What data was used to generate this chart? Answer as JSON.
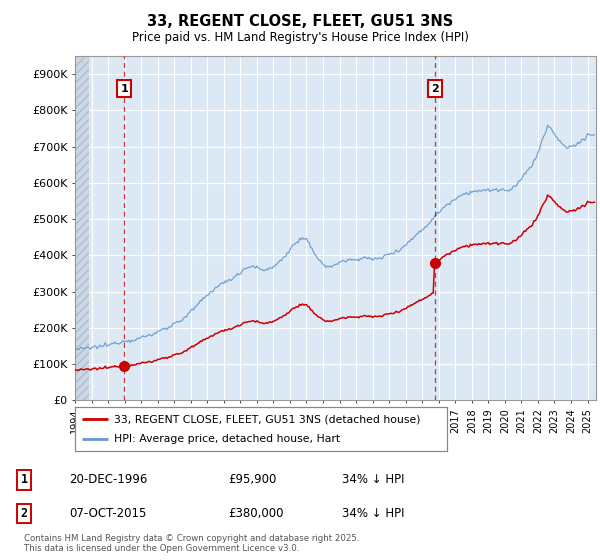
{
  "title": "33, REGENT CLOSE, FLEET, GU51 3NS",
  "subtitle": "Price paid vs. HM Land Registry's House Price Index (HPI)",
  "legend_line1": "33, REGENT CLOSE, FLEET, GU51 3NS (detached house)",
  "legend_line2": "HPI: Average price, detached house, Hart",
  "transaction1_date": "20-DEC-1996",
  "transaction1_price": "£95,900",
  "transaction1_hpi": "34% ↓ HPI",
  "transaction2_date": "07-OCT-2015",
  "transaction2_price": "£380,000",
  "transaction2_hpi": "34% ↓ HPI",
  "footnote": "Contains HM Land Registry data © Crown copyright and database right 2025.\nThis data is licensed under the Open Government Licence v3.0.",
  "ylabel_ticks": [
    "£0",
    "£100K",
    "£200K",
    "£300K",
    "£400K",
    "£500K",
    "£600K",
    "£700K",
    "£800K",
    "£900K"
  ],
  "ytick_values": [
    0,
    100000,
    200000,
    300000,
    400000,
    500000,
    600000,
    700000,
    800000,
    900000
  ],
  "ylim": [
    0,
    950000
  ],
  "xlim_start": 1994.0,
  "xlim_end": 2025.5,
  "transaction1_x": 1996.97,
  "transaction1_y": 95900,
  "transaction2_x": 2015.77,
  "transaction2_y": 380000,
  "red_color": "#cc0000",
  "blue_color": "#6699cc",
  "plot_bg_color": "#dce9f5",
  "background_color": "#ffffff",
  "grid_color": "#ffffff",
  "hatch_color": "#bbbbbb"
}
